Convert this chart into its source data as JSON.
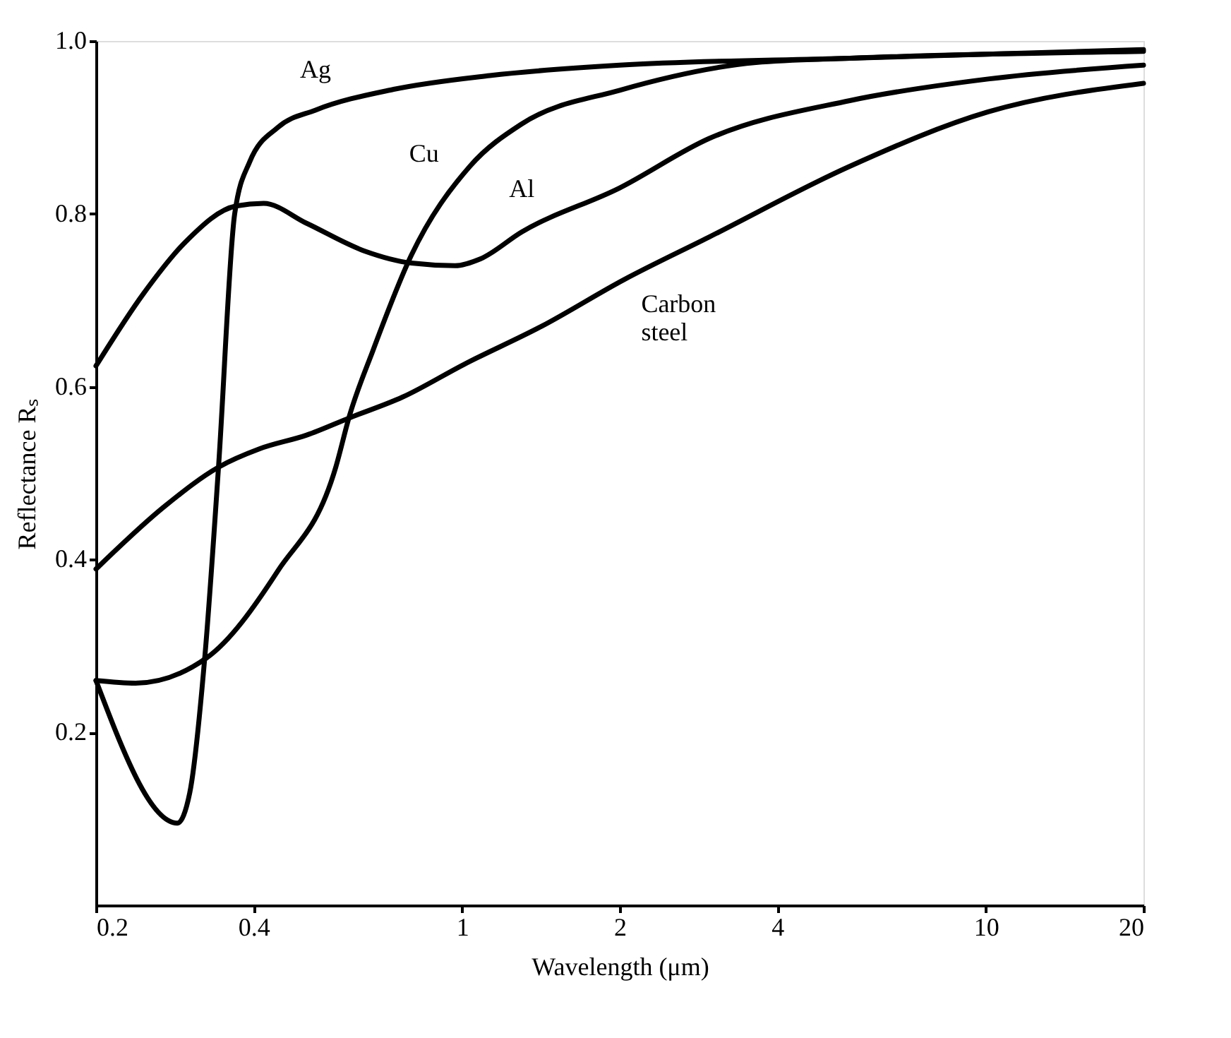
{
  "chart_data": {
    "type": "line",
    "xlabel": "Wavelength (μm)",
    "ylabel": "Reflectance Rₛ",
    "log": "x",
    "xlim": [
      0.2,
      20
    ],
    "xticks": [
      0.2,
      0.4,
      1,
      2,
      4,
      10,
      20
    ],
    "ylim": [
      0,
      1.0
    ],
    "yticks": [
      0.2,
      0.4,
      0.6,
      0.8,
      {
        "value": 1.0,
        "label": "1.0"
      }
    ],
    "grid": false,
    "marker": "none",
    "line_style": "solid",
    "series": [
      {
        "name": "Ag",
        "color": "#000000",
        "x": [
          0.2,
          0.286,
          0.302,
          0.323,
          0.343,
          0.368,
          0.393,
          0.445,
          0.525,
          0.74,
          1.13,
          2.0,
          5.5,
          20
        ],
        "values": [
          0.26,
          0.095,
          0.13,
          0.29,
          0.51,
          0.8,
          0.86,
          0.9,
          0.92,
          0.944,
          0.96,
          0.972,
          0.98,
          0.99
        ]
      },
      {
        "name": "Cu",
        "color": "#000000",
        "x": [
          0.2,
          0.238,
          0.325,
          0.445,
          0.574,
          0.61,
          0.676,
          0.8,
          1.035,
          1.3,
          2.0,
          3.64,
          5.5,
          20
        ],
        "values": [
          0.26,
          0.257,
          0.286,
          0.387,
          0.507,
          0.567,
          0.642,
          0.752,
          0.855,
          0.904,
          0.943,
          0.975,
          0.98,
          0.988
        ]
      },
      {
        "name": "Al",
        "color": "#000000",
        "x": [
          0.2,
          0.246,
          0.297,
          0.37,
          0.418,
          0.505,
          0.651,
          0.8,
          0.97,
          1.085,
          1.3,
          2.0,
          2.96,
          5.5,
          10.1,
          20
        ],
        "values": [
          0.624,
          0.707,
          0.768,
          0.809,
          0.812,
          0.789,
          0.757,
          0.743,
          0.74,
          0.748,
          0.779,
          0.83,
          0.887,
          0.931,
          0.956,
          0.972
        ]
      },
      {
        "name": "Carbon steel",
        "color": "#000000",
        "x": [
          0.2,
          0.271,
          0.343,
          0.41,
          0.505,
          0.61,
          0.77,
          1.01,
          1.42,
          2.04,
          2.96,
          5.5,
          10.1,
          20
        ],
        "values": [
          0.389,
          0.462,
          0.507,
          0.528,
          0.544,
          0.564,
          0.588,
          0.626,
          0.67,
          0.724,
          0.773,
          0.855,
          0.918,
          0.951
        ]
      }
    ]
  }
}
